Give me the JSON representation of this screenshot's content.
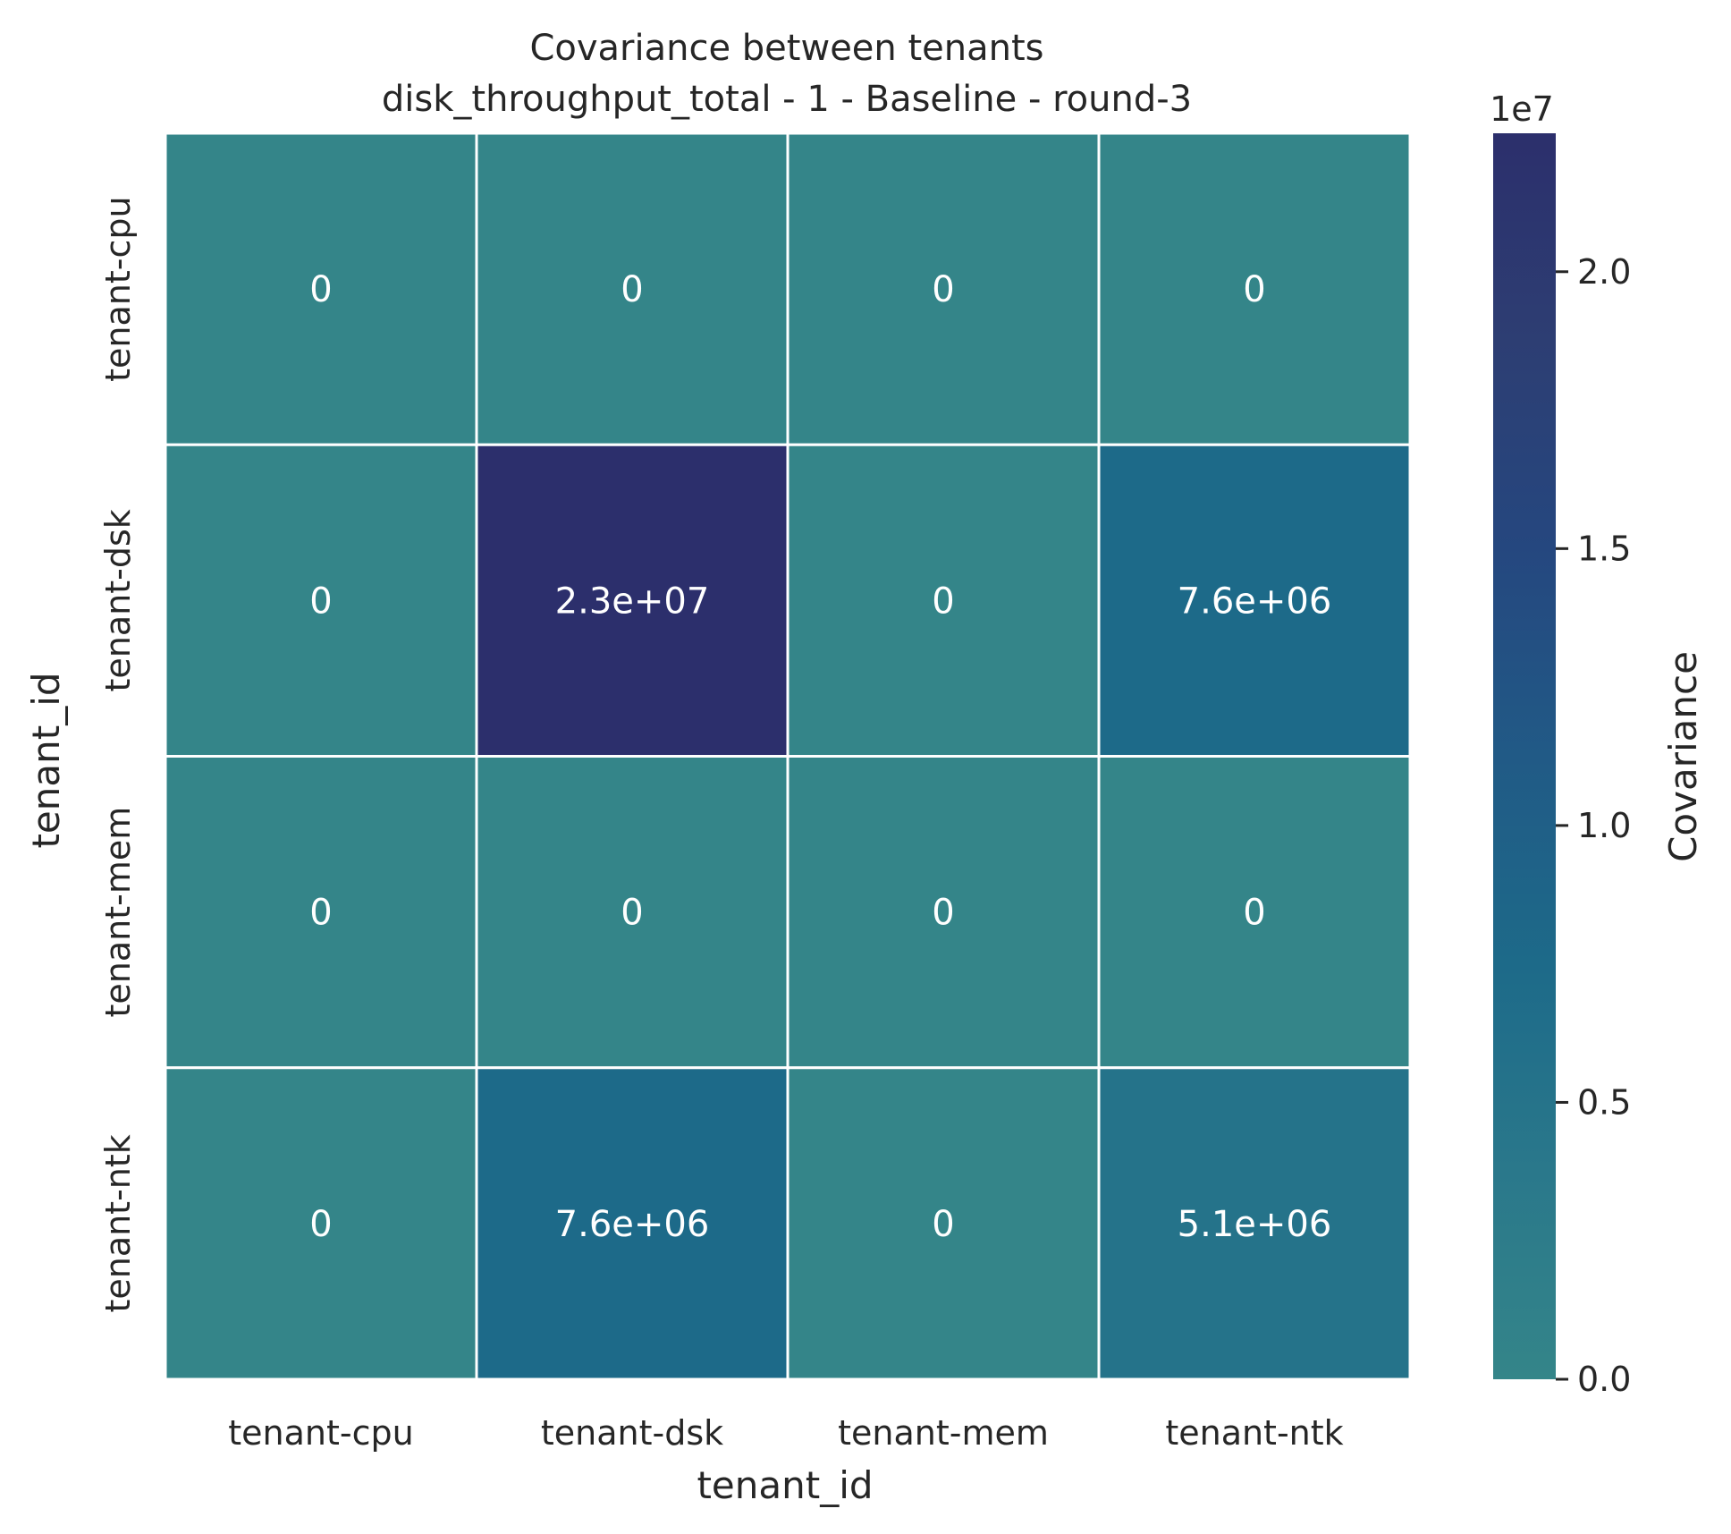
{
  "chart_data": {
    "type": "heatmap",
    "title": "Covariance between tenants",
    "subtitle": "disk_throughput_total - 1 - Baseline - round-3",
    "xlabel": "tenant_id",
    "ylabel": "tenant_id",
    "x_categories": [
      "tenant-cpu",
      "tenant-dsk",
      "tenant-mem",
      "tenant-ntk"
    ],
    "y_categories": [
      "tenant-cpu",
      "tenant-dsk",
      "tenant-mem",
      "tenant-ntk"
    ],
    "values": [
      [
        0,
        0,
        0,
        0
      ],
      [
        0,
        23000000,
        0,
        7600000
      ],
      [
        0,
        0,
        0,
        0
      ],
      [
        0,
        7600000,
        0,
        5100000
      ]
    ],
    "annotations": [
      [
        "0",
        "0",
        "0",
        "0"
      ],
      [
        "0",
        "2.3e+07",
        "0",
        "7.6e+06"
      ],
      [
        "0",
        "0",
        "0",
        "0"
      ],
      [
        "0",
        "7.6e+06",
        "0",
        "5.1e+06"
      ]
    ],
    "colorbar": {
      "label": "Covariance",
      "offset_text": "1e7",
      "range": [
        0,
        22500000
      ],
      "ticks": [
        0,
        5000000,
        10000000,
        15000000,
        20000000
      ],
      "tick_labels": [
        "0.0",
        "0.5",
        "1.0",
        "1.5",
        "2.0"
      ],
      "colormap": [
        "#348589",
        "#2a788b",
        "#1d6a89",
        "#215a86",
        "#25477f",
        "#2d3e73",
        "#2c2f6c"
      ]
    },
    "grid": false
  }
}
